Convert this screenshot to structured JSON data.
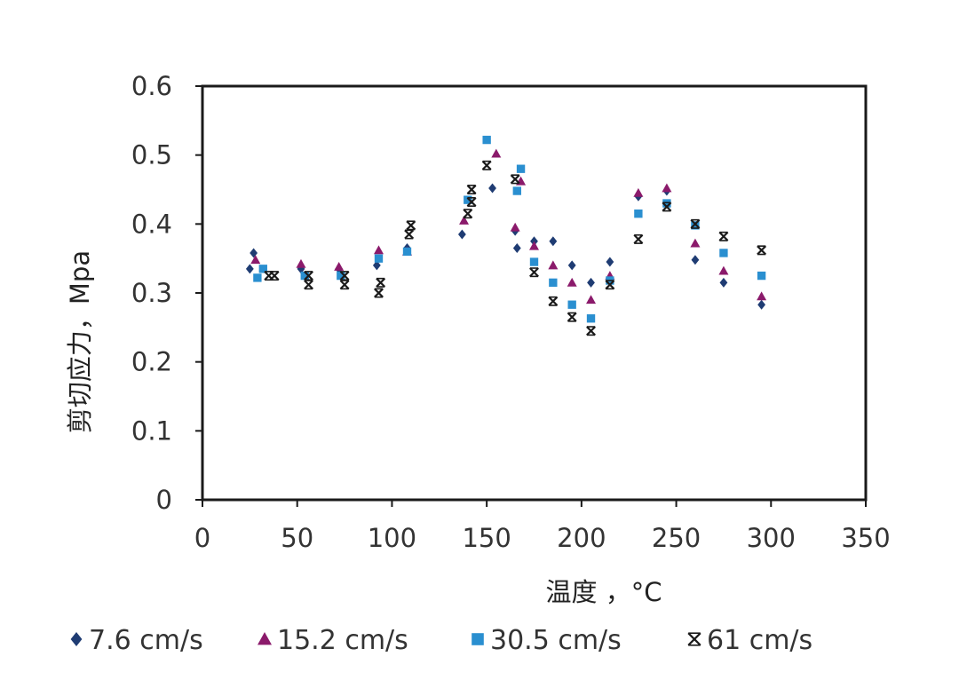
{
  "chart_data": {
    "type": "scatter",
    "title": "",
    "xlabel": "温度 ，°C",
    "ylabel": "剪切应力，Mpa",
    "xlim": [
      0,
      350
    ],
    "ylim": [
      0,
      0.6
    ],
    "x_ticks": [
      "0",
      "50",
      "100",
      "150",
      "200",
      "250",
      "300",
      "350"
    ],
    "y_ticks": [
      "0",
      "0.1",
      "0.2",
      "0.3",
      "0.4",
      "0.5",
      "0.6"
    ],
    "grid": false,
    "legend_position": "bottom",
    "series": [
      {
        "name": "7.6 cm/s",
        "marker": "diamond",
        "color": "#1f3c73",
        "points": [
          [
            25,
            0.335
          ],
          [
            27,
            0.358
          ],
          [
            52,
            0.335
          ],
          [
            72,
            0.335
          ],
          [
            92,
            0.34
          ],
          [
            108,
            0.365
          ],
          [
            137,
            0.385
          ],
          [
            153,
            0.452
          ],
          [
            165,
            0.39
          ],
          [
            166,
            0.365
          ],
          [
            175,
            0.375
          ],
          [
            185,
            0.375
          ],
          [
            195,
            0.34
          ],
          [
            205,
            0.315
          ],
          [
            215,
            0.345
          ],
          [
            230,
            0.44
          ],
          [
            245,
            0.448
          ],
          [
            260,
            0.348
          ],
          [
            275,
            0.315
          ],
          [
            295,
            0.283
          ]
        ]
      },
      {
        "name": "15.2 cm/s",
        "marker": "triangle",
        "color": "#8b1a6b",
        "points": [
          [
            28,
            0.348
          ],
          [
            52,
            0.342
          ],
          [
            72,
            0.338
          ],
          [
            93,
            0.362
          ],
          [
            108,
            0.36
          ],
          [
            138,
            0.405
          ],
          [
            155,
            0.502
          ],
          [
            165,
            0.395
          ],
          [
            168,
            0.462
          ],
          [
            175,
            0.368
          ],
          [
            185,
            0.34
          ],
          [
            195,
            0.315
          ],
          [
            205,
            0.29
          ],
          [
            215,
            0.325
          ],
          [
            230,
            0.445
          ],
          [
            245,
            0.452
          ],
          [
            260,
            0.372
          ],
          [
            275,
            0.332
          ],
          [
            295,
            0.295
          ]
        ]
      },
      {
        "name": "30.5 cm/s",
        "marker": "square",
        "color": "#2a8fd0",
        "points": [
          [
            29,
            0.322
          ],
          [
            32,
            0.335
          ],
          [
            54,
            0.325
          ],
          [
            73,
            0.325
          ],
          [
            93,
            0.35
          ],
          [
            108,
            0.36
          ],
          [
            140,
            0.435
          ],
          [
            150,
            0.522
          ],
          [
            166,
            0.448
          ],
          [
            168,
            0.48
          ],
          [
            175,
            0.345
          ],
          [
            185,
            0.315
          ],
          [
            195,
            0.283
          ],
          [
            205,
            0.263
          ],
          [
            215,
            0.318
          ],
          [
            230,
            0.415
          ],
          [
            245,
            0.43
          ],
          [
            260,
            0.398
          ],
          [
            275,
            0.358
          ],
          [
            295,
            0.325
          ]
        ]
      },
      {
        "name": "61 cm/s",
        "marker": "x",
        "color": "#1a1a1a",
        "points": [
          [
            35,
            0.325
          ],
          [
            38,
            0.325
          ],
          [
            56,
            0.312
          ],
          [
            56,
            0.325
          ],
          [
            75,
            0.312
          ],
          [
            75,
            0.325
          ],
          [
            93,
            0.3
          ],
          [
            94,
            0.315
          ],
          [
            109,
            0.385
          ],
          [
            110,
            0.398
          ],
          [
            140,
            0.415
          ],
          [
            142,
            0.45
          ],
          [
            142,
            0.432
          ],
          [
            150,
            0.485
          ],
          [
            165,
            0.465
          ],
          [
            175,
            0.33
          ],
          [
            185,
            0.288
          ],
          [
            195,
            0.265
          ],
          [
            205,
            0.245
          ],
          [
            215,
            0.312
          ],
          [
            230,
            0.378
          ],
          [
            245,
            0.425
          ],
          [
            260,
            0.4
          ],
          [
            275,
            0.382
          ],
          [
            295,
            0.362
          ]
        ]
      }
    ]
  }
}
